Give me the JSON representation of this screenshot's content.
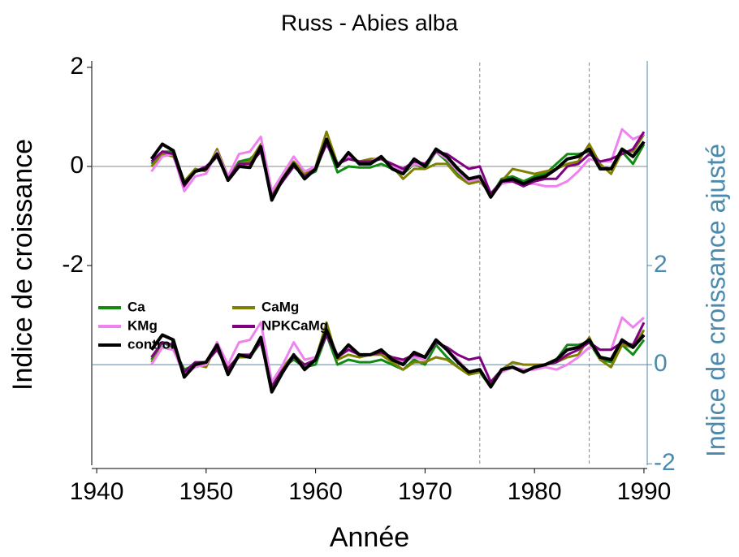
{
  "chart_data": {
    "type": "line",
    "title": "Russ - Abies alba",
    "xlabel": "Année",
    "ylabel": "Indice de croissance",
    "y2label": "Indice de croissance ajusté",
    "x": [
      1945,
      1946,
      1947,
      1948,
      1949,
      1950,
      1951,
      1952,
      1953,
      1954,
      1955,
      1956,
      1957,
      1958,
      1959,
      1960,
      1961,
      1962,
      1963,
      1964,
      1965,
      1966,
      1967,
      1968,
      1969,
      1970,
      1971,
      1972,
      1973,
      1974,
      1975,
      1976,
      1977,
      1978,
      1979,
      1980,
      1981,
      1982,
      1983,
      1984,
      1985,
      1986,
      1987,
      1988,
      1989,
      1990
    ],
    "xlim": [
      1939.55,
      1990.3
    ],
    "xticks": [
      1940,
      1950,
      1960,
      1970,
      1980,
      1990
    ],
    "ylim": [
      -6.03,
      2.13
    ],
    "yticks": [
      -2,
      0,
      2
    ],
    "y2lim": [
      -2.03,
      6.13
    ],
    "y2ticks": [
      -2,
      0,
      2
    ],
    "y2color": "#4a8aad",
    "hline": 0,
    "vlines": [
      1975,
      1985
    ],
    "legend": "center left",
    "series": [
      {
        "name": "Ca",
        "color": "#138a13",
        "values": [
          0.05,
          0.3,
          0.3,
          -0.3,
          -0.1,
          -0.05,
          0.2,
          -0.25,
          0.1,
          0.15,
          0.35,
          -0.55,
          -0.2,
          0.05,
          -0.2,
          -0.1,
          0.5,
          -0.12,
          0.0,
          -0.02,
          -0.02,
          0.05,
          -0.05,
          -0.15,
          0.05,
          -0.05,
          0.3,
          0.1,
          -0.15,
          -0.3,
          -0.25,
          -0.6,
          -0.25,
          -0.2,
          -0.3,
          -0.2,
          -0.15,
          0.05,
          0.25,
          0.25,
          0.3,
          0.0,
          -0.05,
          0.3,
          0.05,
          0.45
        ]
      },
      {
        "name": "CaMg",
        "color": "#808000",
        "values": [
          0.0,
          0.25,
          0.2,
          -0.3,
          -0.05,
          -0.1,
          0.35,
          -0.2,
          0.05,
          0.1,
          0.45,
          -0.55,
          -0.2,
          0.1,
          -0.15,
          0.0,
          0.7,
          0.05,
          0.15,
          0.1,
          0.15,
          0.15,
          0.0,
          -0.25,
          -0.05,
          -0.05,
          0.05,
          0.05,
          -0.2,
          -0.35,
          -0.3,
          -0.55,
          -0.3,
          -0.05,
          -0.1,
          -0.15,
          -0.1,
          -0.05,
          0.05,
          0.1,
          0.45,
          0.05,
          -0.15,
          0.3,
          0.3,
          0.65
        ]
      },
      {
        "name": "KMg",
        "color": "#ee82ee",
        "values": [
          -0.1,
          0.2,
          0.25,
          -0.5,
          -0.2,
          -0.15,
          0.3,
          -0.2,
          0.25,
          0.3,
          0.6,
          -0.5,
          -0.15,
          0.2,
          -0.1,
          0.0,
          0.45,
          0.05,
          0.2,
          0.1,
          0.1,
          0.2,
          0.0,
          -0.1,
          0.05,
          0.0,
          0.3,
          0.15,
          -0.1,
          -0.3,
          -0.25,
          -0.6,
          -0.35,
          -0.3,
          -0.35,
          -0.35,
          -0.4,
          -0.4,
          -0.3,
          -0.1,
          0.15,
          0.1,
          0.1,
          0.75,
          0.55,
          0.65
        ]
      },
      {
        "name": "NPKCaMg",
        "color": "#800080",
        "values": [
          0.1,
          0.3,
          0.25,
          -0.4,
          -0.1,
          0.0,
          0.2,
          -0.25,
          0.05,
          0.05,
          0.3,
          -0.6,
          -0.3,
          0.0,
          -0.2,
          -0.05,
          0.45,
          0.05,
          0.15,
          0.1,
          0.1,
          0.15,
          0.05,
          -0.05,
          0.1,
          0.05,
          0.3,
          0.25,
          0.1,
          -0.05,
          0.0,
          -0.55,
          -0.3,
          -0.3,
          -0.4,
          -0.3,
          -0.25,
          -0.25,
          0.0,
          0.05,
          0.25,
          0.1,
          0.15,
          0.25,
          0.35,
          0.7
        ]
      },
      {
        "name": "control",
        "color": "#000000",
        "values": [
          0.15,
          0.45,
          0.32,
          -0.35,
          -0.1,
          -0.05,
          0.25,
          -0.28,
          0.0,
          -0.02,
          0.4,
          -0.68,
          -0.25,
          0.05,
          -0.25,
          -0.05,
          0.55,
          0.0,
          0.28,
          0.05,
          0.05,
          0.2,
          -0.05,
          -0.15,
          0.15,
          0.0,
          0.35,
          0.2,
          -0.05,
          -0.25,
          -0.2,
          -0.62,
          -0.3,
          -0.25,
          -0.35,
          -0.25,
          -0.2,
          -0.05,
          0.15,
          0.2,
          0.35,
          -0.05,
          -0.05,
          0.35,
          0.2,
          0.5
        ]
      },
      {
        "axis": "y2",
        "color": "#138a13",
        "values": [
          0.1,
          0.45,
          0.35,
          -0.1,
          0.0,
          0.05,
          0.4,
          -0.05,
          0.15,
          0.15,
          0.45,
          -0.4,
          -0.05,
          0.1,
          -0.05,
          0.0,
          0.6,
          0.0,
          0.1,
          0.05,
          0.05,
          0.1,
          0.0,
          -0.1,
          0.1,
          0.0,
          0.4,
          0.15,
          -0.05,
          -0.2,
          -0.15,
          -0.45,
          -0.1,
          -0.05,
          -0.15,
          -0.05,
          0.0,
          0.1,
          0.4,
          0.4,
          0.45,
          0.1,
          0.05,
          0.4,
          0.2,
          0.5
        ]
      },
      {
        "axis": "y2",
        "color": "#808000",
        "values": [
          0.05,
          0.35,
          0.3,
          -0.15,
          0.0,
          -0.05,
          0.45,
          -0.05,
          0.15,
          0.15,
          0.55,
          -0.45,
          -0.05,
          0.2,
          0.0,
          0.1,
          0.85,
          0.1,
          0.2,
          0.15,
          0.2,
          0.2,
          0.05,
          -0.1,
          0.05,
          0.05,
          0.15,
          0.1,
          -0.05,
          -0.2,
          -0.15,
          -0.4,
          -0.1,
          0.05,
          0.0,
          0.0,
          0.0,
          0.05,
          0.15,
          0.2,
          0.55,
          0.1,
          -0.05,
          0.4,
          0.35,
          0.7
        ]
      },
      {
        "axis": "y2",
        "color": "#ee82ee",
        "values": [
          0.0,
          0.35,
          0.3,
          -0.2,
          -0.05,
          0.0,
          0.45,
          0.0,
          0.45,
          0.5,
          0.85,
          -0.35,
          0.0,
          0.45,
          0.1,
          0.15,
          0.65,
          0.2,
          0.35,
          0.2,
          0.2,
          0.3,
          0.1,
          0.05,
          0.15,
          0.1,
          0.5,
          0.3,
          0.1,
          -0.15,
          -0.1,
          -0.45,
          -0.15,
          -0.05,
          -0.1,
          -0.1,
          -0.05,
          -0.1,
          0.0,
          0.15,
          0.35,
          0.3,
          0.3,
          0.95,
          0.75,
          0.95
        ]
      },
      {
        "axis": "y2",
        "color": "#800080",
        "values": [
          0.15,
          0.45,
          0.4,
          -0.15,
          0.05,
          0.05,
          0.3,
          -0.1,
          0.2,
          0.2,
          0.45,
          -0.45,
          -0.1,
          0.15,
          0.0,
          0.1,
          0.6,
          0.15,
          0.3,
          0.2,
          0.2,
          0.25,
          0.15,
          0.1,
          0.2,
          0.15,
          0.45,
          0.35,
          0.2,
          0.1,
          0.15,
          -0.35,
          -0.1,
          -0.05,
          -0.15,
          -0.05,
          0.0,
          0.05,
          0.2,
          0.3,
          0.45,
          0.3,
          0.3,
          0.45,
          0.4,
          0.85
        ]
      },
      {
        "axis": "y2",
        "color": "#000000",
        "values": [
          0.3,
          0.6,
          0.5,
          -0.25,
          0.0,
          0.05,
          0.4,
          -0.2,
          0.2,
          0.15,
          0.55,
          -0.55,
          -0.15,
          0.2,
          -0.1,
          0.1,
          0.7,
          0.15,
          0.4,
          0.2,
          0.2,
          0.3,
          0.1,
          0.0,
          0.25,
          0.15,
          0.5,
          0.3,
          0.05,
          -0.15,
          -0.1,
          -0.45,
          -0.1,
          -0.05,
          -0.15,
          -0.05,
          0.0,
          0.1,
          0.3,
          0.35,
          0.5,
          0.15,
          0.1,
          0.5,
          0.35,
          0.6
        ]
      }
    ]
  }
}
